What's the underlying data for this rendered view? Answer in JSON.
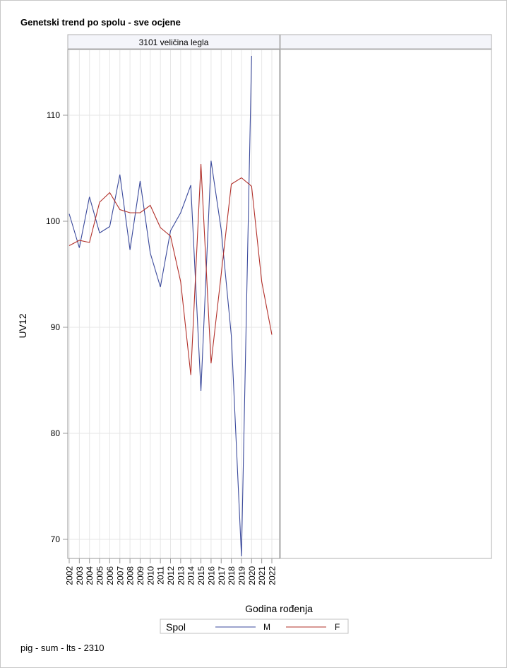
{
  "chart_data": {
    "type": "line",
    "title": "Genetski trend po spolu - sve ocjene",
    "panel_label": "3101 veličina legla",
    "xlabel": "Godina rođenja",
    "ylabel": "UV12",
    "ylim": [
      68,
      116
    ],
    "yticks": [
      70,
      80,
      90,
      100,
      110
    ],
    "categories": [
      "2002",
      "2003",
      "2004",
      "2005",
      "2006",
      "2007",
      "2008",
      "2009",
      "2010",
      "2011",
      "2012",
      "2013",
      "2014",
      "2015",
      "2016",
      "2017",
      "2018",
      "2019",
      "2020",
      "2021",
      "2022"
    ],
    "legend": {
      "title": "Spol",
      "placement": "bottom"
    },
    "series": [
      {
        "name": "M",
        "color": "#3b4a9c",
        "values": [
          100.7,
          97.5,
          102.3,
          98.9,
          99.5,
          104.4,
          97.3,
          103.8,
          97.0,
          93.8,
          99.1,
          100.8,
          103.4,
          84.0,
          105.7,
          99.2,
          89.2,
          68.4,
          115.6,
          null,
          null
        ]
      },
      {
        "name": "F",
        "color": "#b2302a",
        "values": [
          97.7,
          98.2,
          98.0,
          101.8,
          102.7,
          101.1,
          100.8,
          100.8,
          101.5,
          99.4,
          98.6,
          94.3,
          85.5,
          105.4,
          86.6,
          95.0,
          103.5,
          104.1,
          103.3,
          94.3,
          89.3
        ]
      }
    ]
  },
  "footer": "pig - sum - lts - 2310"
}
